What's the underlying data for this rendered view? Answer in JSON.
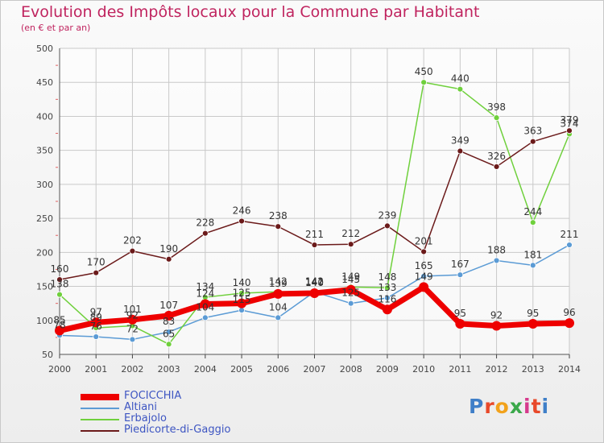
{
  "title": "Evolution des Impôts locaux pour la Commune par Habitant",
  "subtitle": "(en € et par an)",
  "logo": {
    "text": "Proxiti",
    "letter_colors": [
      "#3f7fc8",
      "#e8492a",
      "#f2a21b",
      "#3aa84a",
      "#d63a8c",
      "#e8492a",
      "#3f7fc8"
    ]
  },
  "chart_data": {
    "type": "line",
    "x": [
      2000,
      2001,
      2002,
      2003,
      2004,
      2005,
      2006,
      2007,
      2008,
      2009,
      2010,
      2011,
      2012,
      2013,
      2014
    ],
    "ylim": [
      50,
      500
    ],
    "yticks": [
      50,
      100,
      150,
      200,
      250,
      300,
      350,
      400,
      450,
      500
    ],
    "grid": true,
    "legend_position": "bottom-left",
    "series": [
      {
        "name": "FOCICCHIA",
        "color": "#ee0000",
        "labels_shown": true,
        "values": [
          85,
          97,
          101,
          107,
          124,
          125,
          139,
          140,
          145,
          116,
          149,
          95,
          92,
          95,
          96
        ]
      },
      {
        "name": "Altiani",
        "color": "#5b9bd5",
        "labels_shown": true,
        "values": [
          78,
          76,
          72,
          83,
          104,
          115,
          104,
          142,
          125,
          133,
          165,
          167,
          188,
          181,
          211
        ]
      },
      {
        "name": "Erbajolo",
        "color": "#6fd03c",
        "labels_shown": true,
        "values": [
          138,
          89,
          92,
          65,
          134,
          140,
          142,
          141,
          149,
          148,
          450,
          440,
          398,
          244,
          374
        ]
      },
      {
        "name": "Piedicorte-di-Gaggio",
        "color": "#6b1a1a",
        "labels_shown": true,
        "values": [
          160,
          170,
          202,
          190,
          228,
          246,
          238,
          211,
          212,
          239,
          201,
          349,
          326,
          363,
          379
        ]
      }
    ]
  }
}
